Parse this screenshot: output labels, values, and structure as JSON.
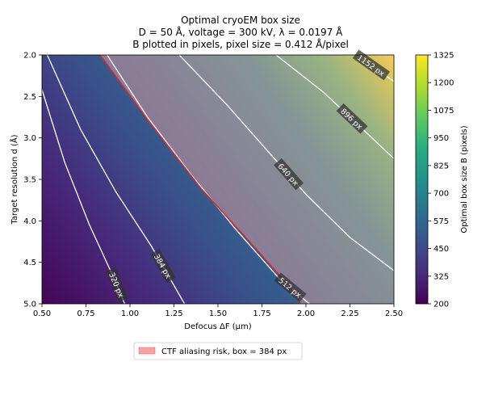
{
  "chart_data": {
    "type": "heatmap",
    "title": [
      "Optimal cryoEM box size",
      "D = 50 Å, voltage = 300 kV, λ = 0.0197 Å",
      "B plotted in pixels, pixel size = 0.412 Å/pixel"
    ],
    "xlabel": "Defocus ΔF (µm)",
    "ylabel": "Target resolution d (Å)",
    "xlim": [
      0.5,
      2.5
    ],
    "ylim": [
      5.0,
      2.0
    ],
    "x_ticks": [
      "0.50",
      "0.75",
      "1.00",
      "1.25",
      "1.50",
      "1.75",
      "2.00",
      "2.25",
      "2.50"
    ],
    "y_ticks": [
      "2.0",
      "2.5",
      "3.0",
      "3.5",
      "4.0",
      "4.5",
      "5.0"
    ],
    "colorbar": {
      "label": "Optimal box size B (pixels)",
      "range": [
        200,
        1325
      ],
      "ticks": [
        "200",
        "325",
        "450",
        "575",
        "700",
        "825",
        "950",
        "1075",
        "1200",
        "1325"
      ],
      "colormap": "viridis"
    },
    "contours": [
      {
        "label": "320 px",
        "level": 320,
        "points": [
          [
            0.5,
            2.42
          ],
          [
            0.63,
            3.3
          ],
          [
            0.77,
            4.05
          ],
          [
            0.9,
            4.65
          ],
          [
            0.97,
            5.0
          ]
        ]
      },
      {
        "label": "384 px",
        "level": 384,
        "points": [
          [
            0.53,
            2.0
          ],
          [
            0.72,
            2.9
          ],
          [
            0.92,
            3.65
          ],
          [
            1.12,
            4.3
          ],
          [
            1.31,
            5.0
          ]
        ]
      },
      {
        "label": "512 px",
        "level": 512,
        "points": [
          [
            0.87,
            2.0
          ],
          [
            1.1,
            2.75
          ],
          [
            1.35,
            3.45
          ],
          [
            1.6,
            4.1
          ],
          [
            1.85,
            4.7
          ],
          [
            2.02,
            5.0
          ]
        ]
      },
      {
        "label": "640 px",
        "level": 640,
        "points": [
          [
            1.28,
            2.0
          ],
          [
            1.55,
            2.6
          ],
          [
            1.8,
            3.2
          ],
          [
            2.0,
            3.68
          ],
          [
            2.25,
            4.2
          ],
          [
            2.5,
            4.6
          ]
        ]
      },
      {
        "label": "896 px",
        "level": 896,
        "points": [
          [
            1.83,
            2.0
          ],
          [
            2.1,
            2.45
          ],
          [
            2.3,
            2.85
          ],
          [
            2.5,
            3.25
          ]
        ]
      },
      {
        "label": "1152 px",
        "level": 1152,
        "points": [
          [
            2.3,
            2.02
          ],
          [
            2.5,
            2.32
          ]
        ]
      }
    ],
    "aliasing_boundary": {
      "box": 384,
      "points": [
        [
          0.83,
          2.0
        ],
        [
          1.1,
          2.78
        ],
        [
          1.4,
          3.6
        ],
        [
          1.7,
          4.3
        ],
        [
          1.91,
          4.8
        ],
        [
          1.97,
          5.0
        ]
      ]
    },
    "legend": {
      "label": "CTF aliasing risk, box = 384 px",
      "placement": "bottom-center",
      "color": "#f4a3a3"
    }
  }
}
